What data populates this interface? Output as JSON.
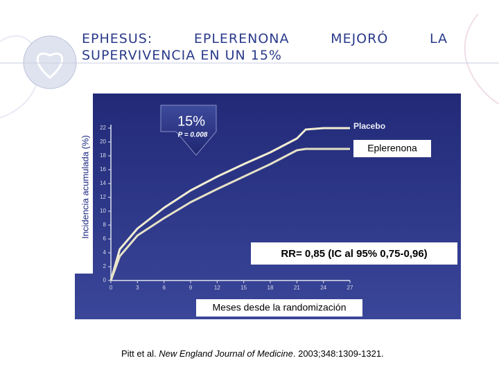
{
  "title": "EPHESUS: EPLERENONA MEJORÓ LA SUPERVIVENCIA EN UN 15%",
  "chart_data": {
    "type": "line",
    "x": [
      0,
      1,
      3,
      6,
      9,
      12,
      15,
      18,
      21,
      22,
      24,
      27
    ],
    "series": [
      {
        "name": "Placebo",
        "color": "#f2eed2",
        "values": [
          0,
          4.5,
          7.5,
          10.5,
          13,
          15,
          16.8,
          18.5,
          20.5,
          21.8,
          22,
          22
        ]
      },
      {
        "name": "Eplerenona",
        "color": "#e6e2c6",
        "values": [
          0,
          3.5,
          6.5,
          9,
          11.3,
          13.2,
          15,
          16.8,
          18.8,
          19,
          19,
          19
        ]
      }
    ],
    "xlim": [
      0,
      27
    ],
    "xticks": [
      0,
      3,
      6,
      9,
      12,
      15,
      18,
      21,
      24,
      27
    ],
    "ylim": [
      0,
      22
    ],
    "yticks": [
      0,
      2,
      4,
      6,
      8,
      10,
      12,
      14,
      16,
      18,
      20,
      22
    ],
    "grid": false,
    "y_label": "Incidencia acumulada (%)",
    "x_label": "Meses desde la randomización",
    "reduction": "15%",
    "p_value": "P = 0.008",
    "rr_annotation": "RR= 0,85 (IC al 95%  0,75-0,96)"
  },
  "citation": {
    "authors": "Pitt et al. ",
    "journal": "New England Journal of Medicine",
    "details": ". 2003;348:1309-1321."
  }
}
